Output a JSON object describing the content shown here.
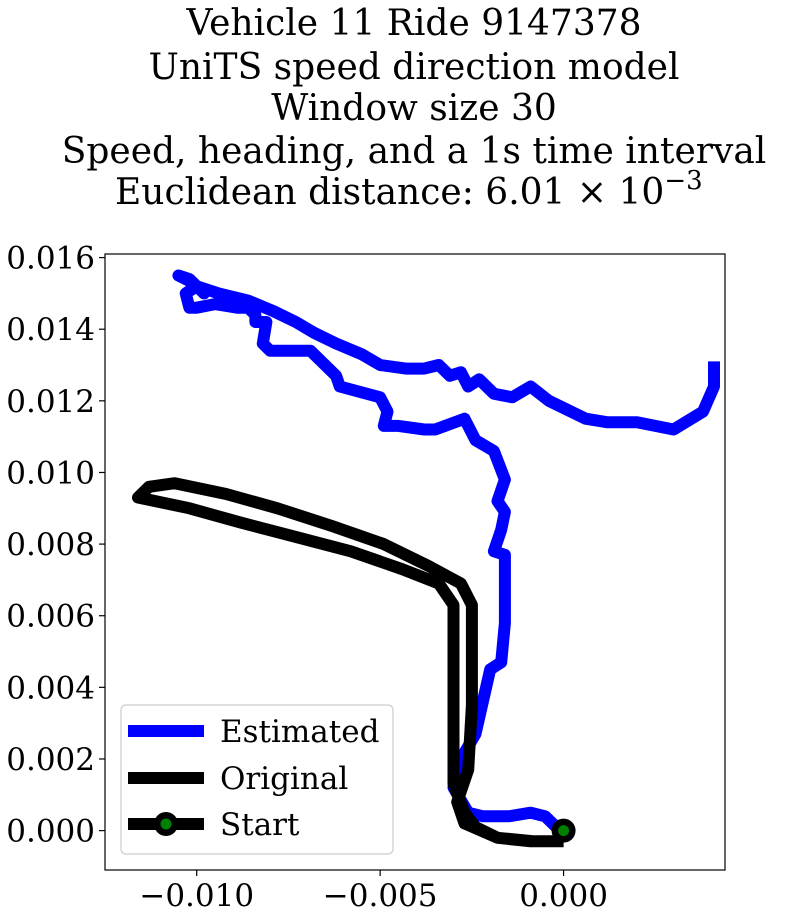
{
  "chart_data": {
    "type": "line",
    "title_lines": [
      "Vehicle 11 Ride 9147378",
      "UniTS speed direction model",
      "Window size 30",
      "Speed, heading, and a 1s time interval",
      "Euclidean distance: 6.01 × 10",
      "−3"
    ],
    "xlabel": "",
    "ylabel": "",
    "xlim": [
      -0.0125,
      0.0044
    ],
    "ylim": [
      -0.0011,
      0.0161
    ],
    "x_ticks": [
      -0.01,
      -0.005,
      0.0
    ],
    "x_tick_labels": [
      "−0.010",
      "−0.005",
      "0.000"
    ],
    "y_ticks": [
      0.0,
      0.002,
      0.004,
      0.006,
      0.008,
      0.01,
      0.012,
      0.014,
      0.016
    ],
    "y_tick_labels": [
      "0.000",
      "0.002",
      "0.004",
      "0.006",
      "0.008",
      "0.010",
      "0.012",
      "0.014",
      "0.016"
    ],
    "grid": false,
    "legend_position": "lower-left",
    "series": [
      {
        "name": "Estimated",
        "color": "#0000ff",
        "points": [
          [
            0.0,
            -0.0001
          ],
          [
            -0.0005,
            0.0004
          ],
          [
            -0.0009,
            0.0005
          ],
          [
            -0.0015,
            0.0004
          ],
          [
            -0.0022,
            0.0004
          ],
          [
            -0.0026,
            0.0005
          ],
          [
            -0.003,
            0.0012
          ],
          [
            -0.0028,
            0.002
          ],
          [
            -0.0024,
            0.0027
          ],
          [
            -0.002,
            0.0045
          ],
          [
            -0.0017,
            0.0047
          ],
          [
            -0.0016,
            0.0058
          ],
          [
            -0.0016,
            0.0068
          ],
          [
            -0.0016,
            0.0077
          ],
          [
            -0.0019,
            0.0078
          ],
          [
            -0.0017,
            0.0084
          ],
          [
            -0.0016,
            0.0089
          ],
          [
            -0.0018,
            0.0092
          ],
          [
            -0.0016,
            0.0098
          ],
          [
            -0.0019,
            0.0106
          ],
          [
            -0.0024,
            0.0109
          ],
          [
            -0.0027,
            0.0115
          ],
          [
            -0.0035,
            0.0112
          ],
          [
            -0.0038,
            0.0112
          ],
          [
            -0.0045,
            0.0113
          ],
          [
            -0.0049,
            0.0113
          ],
          [
            -0.0048,
            0.0117
          ],
          [
            -0.005,
            0.0121
          ],
          [
            -0.0061,
            0.0124
          ],
          [
            -0.0062,
            0.0127
          ],
          [
            -0.0069,
            0.0134
          ],
          [
            -0.008,
            0.0134
          ],
          [
            -0.0082,
            0.0136
          ],
          [
            -0.0081,
            0.0142
          ],
          [
            -0.0084,
            0.0142
          ],
          [
            -0.0084,
            0.0144
          ],
          [
            -0.0086,
            0.0146
          ],
          [
            -0.0089,
            0.0146
          ],
          [
            -0.0095,
            0.0147
          ],
          [
            -0.01,
            0.0146
          ],
          [
            -0.0102,
            0.0146
          ],
          [
            -0.0103,
            0.015
          ],
          [
            -0.01,
            0.0152
          ],
          [
            -0.0098,
            0.015
          ],
          [
            -0.0101,
            0.0153
          ],
          [
            -0.0105,
            0.0155
          ],
          [
            -0.0102,
            0.0154
          ],
          [
            -0.01,
            0.0152
          ],
          [
            -0.0094,
            0.015
          ],
          [
            -0.0086,
            0.0148
          ],
          [
            -0.0079,
            0.0145
          ],
          [
            -0.0073,
            0.0142
          ],
          [
            -0.0068,
            0.0139
          ],
          [
            -0.0062,
            0.0136
          ],
          [
            -0.0055,
            0.0133
          ],
          [
            -0.005,
            0.013
          ],
          [
            -0.0043,
            0.0129
          ],
          [
            -0.0038,
            0.0129
          ],
          [
            -0.0034,
            0.013
          ],
          [
            -0.0031,
            0.0127
          ],
          [
            -0.0028,
            0.0128
          ],
          [
            -0.0026,
            0.0124
          ],
          [
            -0.0023,
            0.0126
          ],
          [
            -0.0019,
            0.0122
          ],
          [
            -0.0014,
            0.0121
          ],
          [
            -0.0009,
            0.0124
          ],
          [
            -0.0004,
            0.012
          ],
          [
            0.0006,
            0.0115
          ],
          [
            0.0012,
            0.0114
          ],
          [
            0.002,
            0.0114
          ],
          [
            0.003,
            0.0112
          ],
          [
            0.0038,
            0.0117
          ],
          [
            0.0041,
            0.0124
          ],
          [
            0.0041,
            0.0131
          ]
        ]
      },
      {
        "name": "Original",
        "color": "#000000",
        "points": [
          [
            0.0,
            -0.0003
          ],
          [
            -0.0009,
            -0.0003
          ],
          [
            -0.0018,
            -0.0002
          ],
          [
            -0.0024,
            0.0001
          ],
          [
            -0.0027,
            0.0005
          ],
          [
            -0.003,
            0.0013
          ],
          [
            -0.003,
            0.003
          ],
          [
            -0.003,
            0.0052
          ],
          [
            -0.003,
            0.0063
          ],
          [
            -0.0034,
            0.0069
          ],
          [
            -0.0044,
            0.0073
          ],
          [
            -0.0058,
            0.0078
          ],
          [
            -0.0073,
            0.0082
          ],
          [
            -0.0088,
            0.0086
          ],
          [
            -0.0102,
            0.009
          ],
          [
            -0.0116,
            0.0093
          ],
          [
            -0.0113,
            0.0096
          ],
          [
            -0.0106,
            0.0097
          ],
          [
            -0.0092,
            0.0094
          ],
          [
            -0.0078,
            0.009
          ],
          [
            -0.0063,
            0.0085
          ],
          [
            -0.0049,
            0.008
          ],
          [
            -0.0037,
            0.0074
          ],
          [
            -0.0028,
            0.0069
          ],
          [
            -0.0025,
            0.0063
          ],
          [
            -0.0025,
            0.005
          ],
          [
            -0.0025,
            0.0035
          ],
          [
            -0.0026,
            0.0017
          ],
          [
            -0.0029,
            0.0008
          ],
          [
            -0.0027,
            0.0002
          ],
          [
            -0.0018,
            -0.0002
          ],
          [
            -0.0008,
            -0.0003
          ],
          [
            0.0,
            -0.0003
          ]
        ]
      },
      {
        "name": "Start",
        "color": "#008000",
        "marker_edge_color": "#000000",
        "points": [
          [
            0.0,
            0.0
          ]
        ]
      }
    ]
  }
}
